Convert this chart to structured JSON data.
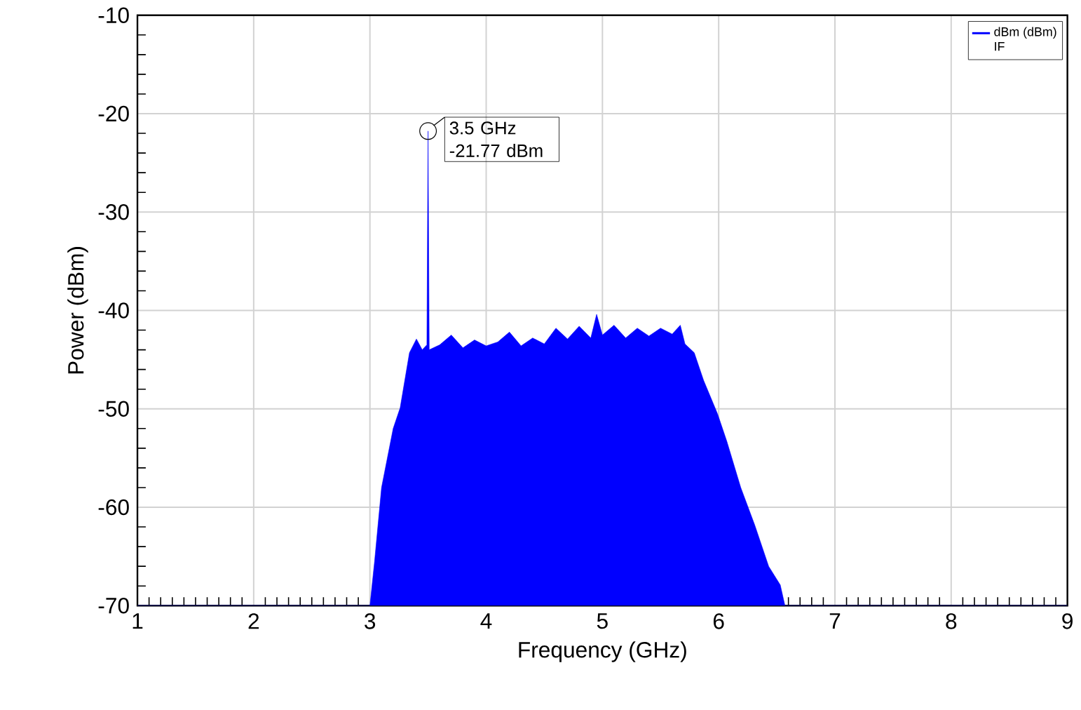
{
  "chart_data": {
    "type": "area",
    "xlabel": "Frequency (GHz)",
    "ylabel": "Power (dBm)",
    "legend_title": "IF",
    "series": [
      {
        "name": "dBm (dBm)",
        "color": "#0000ff",
        "x": [
          1,
          3.0,
          3.04,
          3.1,
          3.2,
          3.26,
          3.34,
          3.4,
          3.45,
          3.49,
          3.5,
          3.51,
          3.6,
          3.7,
          3.8,
          3.9,
          4.0,
          4.1,
          4.2,
          4.3,
          4.4,
          4.5,
          4.6,
          4.7,
          4.8,
          4.9,
          4.95,
          5.0,
          5.1,
          5.2,
          5.3,
          5.4,
          5.5,
          5.6,
          5.67,
          5.71,
          5.79,
          5.87,
          5.99,
          6.07,
          6.19,
          6.31,
          6.43,
          6.53,
          6.57,
          9
        ],
        "values": [
          -70,
          -70,
          -65.5,
          -58,
          -52,
          -49.9,
          -44.3,
          -42.9,
          -44,
          -43.5,
          -21.77,
          -44,
          -43.5,
          -42.5,
          -43.8,
          -43,
          -43.6,
          -43.2,
          -42.2,
          -43.6,
          -42.8,
          -43.4,
          -41.8,
          -42.9,
          -41.6,
          -42.8,
          -40.4,
          -42.5,
          -41.5,
          -42.8,
          -41.8,
          -42.6,
          -41.8,
          -42.4,
          -41.5,
          -43.4,
          -44.3,
          -47.1,
          -50.5,
          -53.3,
          -58,
          -61.8,
          -66,
          -67.9,
          -70,
          -70
        ]
      }
    ],
    "xlim": [
      1,
      9
    ],
    "ylim": [
      -70,
      -10
    ],
    "xticks": [
      1,
      2,
      3,
      4,
      5,
      6,
      7,
      8,
      9
    ],
    "yticks": [
      -70,
      -60,
      -50,
      -40,
      -30,
      -20,
      -10
    ],
    "grid": true,
    "legend": "top right",
    "annotations": [
      {
        "text": "3.5 GHz",
        "x": 3.5,
        "y": -21.77
      },
      {
        "text": "-21.77 dBm",
        "x": 3.5,
        "y": -21.77
      }
    ]
  }
}
